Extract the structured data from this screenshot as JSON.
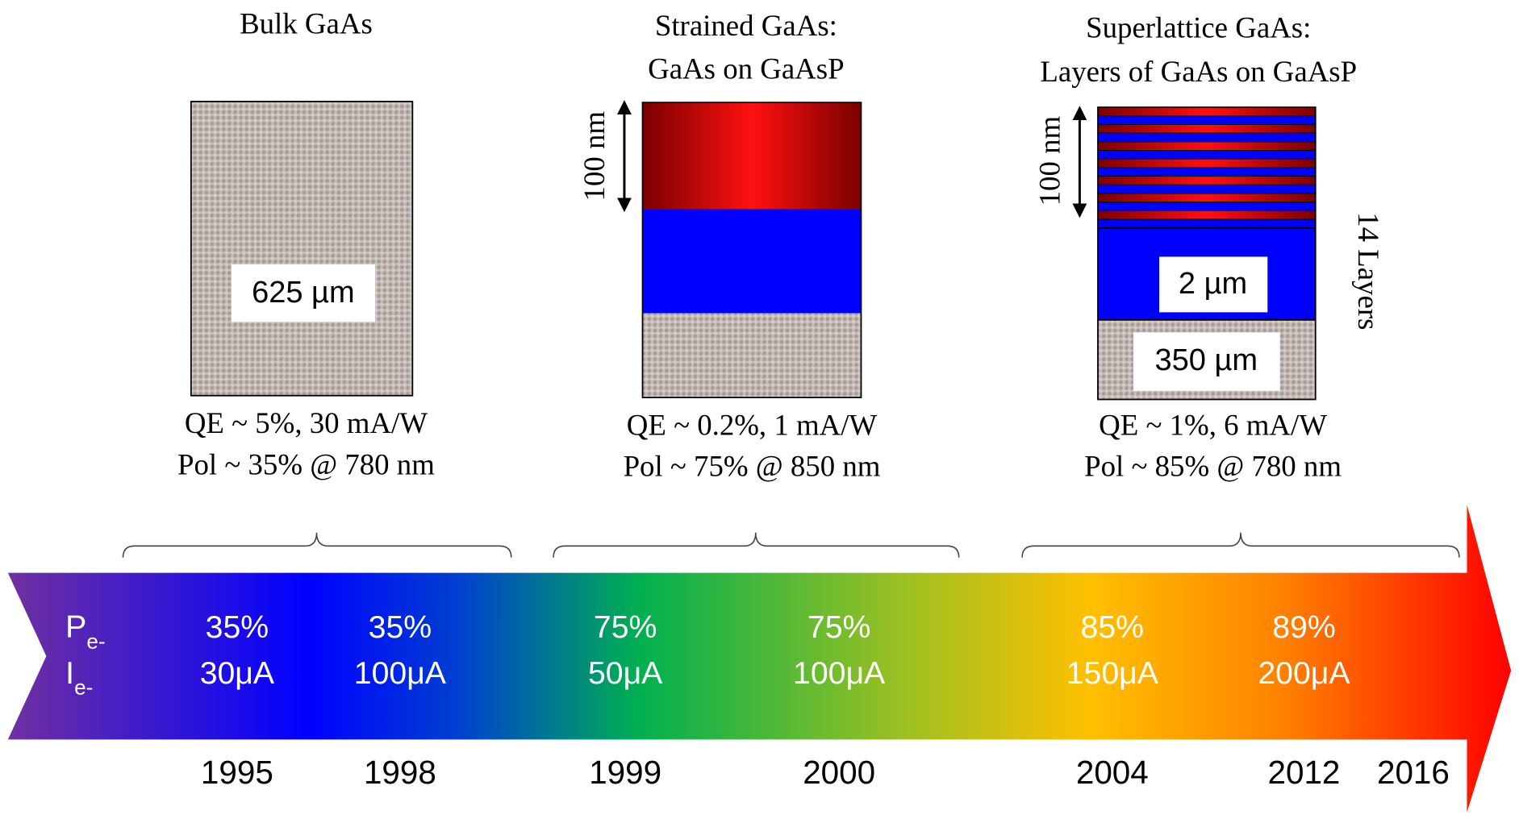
{
  "panels": [
    {
      "title": [
        "Bulk GaAs"
      ],
      "labels": [
        "625 µm"
      ],
      "qe": "QE ~ 5%, 30 mA/W",
      "pol": "Pol ~ 35% @ 780 nm"
    },
    {
      "title": [
        "Strained GaAs:",
        "GaAs on GaAsP"
      ],
      "dimension": "100 nm",
      "qe": "QE ~ 0.2%, 1 mA/W",
      "pol": "Pol ~ 75% @ 850 nm"
    },
    {
      "title": [
        "Superlattice GaAs:",
        "Layers of GaAs on GaAsP"
      ],
      "dimension": "100 nm",
      "layers": "14 Layers",
      "labels": [
        "2 µm",
        "350 µm"
      ],
      "qe": "QE ~ 1%, 6 mA/W",
      "pol": "Pol ~ 85% @ 780 nm"
    }
  ],
  "timeline": {
    "row_labels": [
      {
        "symbol": "P",
        "sub": "e-"
      },
      {
        "symbol": "I",
        "sub": "e-"
      }
    ],
    "entries": [
      {
        "pol": "35%",
        "current": "30μA",
        "year": "1995"
      },
      {
        "pol": "35%",
        "current": "100μA",
        "year": "1998"
      },
      {
        "pol": "75%",
        "current": "50μA",
        "year": "1999"
      },
      {
        "pol": "75%",
        "current": "100μA",
        "year": "2000"
      },
      {
        "pol": "85%",
        "current": "150μA",
        "year": "2004"
      },
      {
        "pol": "89%",
        "current": "200μA",
        "year": "2012"
      }
    ],
    "end_year": "2016"
  }
}
